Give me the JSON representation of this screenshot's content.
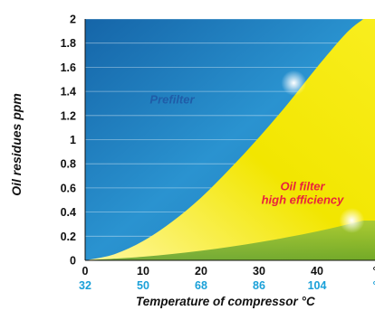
{
  "chart_data": {
    "type": "area",
    "ylabel": "Oil residues ppm",
    "xlabel": "Temperature of compressor °C",
    "ylim": [
      0,
      2
    ],
    "xlim": [
      0,
      50
    ],
    "y_ticks": [
      "0",
      "0.2",
      "0.4",
      "0.6",
      "0.8",
      "1",
      "1.2",
      "1.4",
      "1.6",
      "1.8",
      "2"
    ],
    "x_ticks_c": [
      "0",
      "10",
      "20",
      "30",
      "40",
      "°"
    ],
    "x_ticks_f": [
      "32",
      "50",
      "68",
      "86",
      "104",
      "°"
    ],
    "grid": true,
    "colors": {
      "prefilter_region": "#1f7fc1",
      "oil_filter_region": "#f2e600",
      "prefilter_label": "#1f5ca8",
      "oil_filter_label": "#e8243c",
      "fahrenheit_ticks": "#1aa0d8"
    },
    "regions": [
      {
        "name": "prefilter",
        "label": "Prefilter",
        "x": [
          0,
          5,
          10,
          15,
          20,
          25,
          30,
          35,
          40,
          45,
          48
        ],
        "y": [
          0,
          0.05,
          0.16,
          0.32,
          0.52,
          0.76,
          1.02,
          1.3,
          1.6,
          1.88,
          2.0
        ]
      },
      {
        "name": "oil-filter-high-efficiency",
        "label_lines": [
          "Oil filter",
          "high efficiency"
        ],
        "x": [
          0,
          10,
          20,
          30,
          40,
          48
        ],
        "y": [
          0,
          0.03,
          0.08,
          0.15,
          0.24,
          0.33
        ]
      }
    ]
  }
}
